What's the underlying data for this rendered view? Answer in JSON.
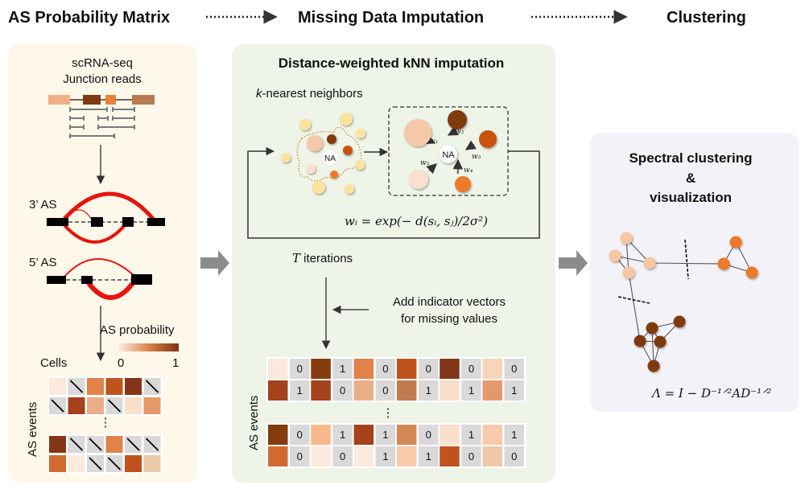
{
  "stages": {
    "stage1": "AS Probability Matrix",
    "stage2": "Missing Data Imputation",
    "stage3": "Clustering"
  },
  "left": {
    "line1": "scRNA-seq",
    "line2": "Junction reads",
    "as3": "3’ AS",
    "as5": "5’ AS",
    "prob_label": "AS probability",
    "scale_min": "0",
    "scale_max": "1",
    "cells_label": "Cells",
    "events_label": "AS events",
    "ellipsis": "⋮",
    "exon_colors": [
      "#f2ae84",
      "#7d3a10",
      "#e8823a",
      "#b87a4f"
    ],
    "matrix_top": [
      [
        "#fbe9dd",
        null,
        "#e0824a",
        "#c0521e",
        "#843518",
        null
      ],
      [
        null,
        "#a4421c",
        "#eaaf86",
        null,
        "#fae0c8",
        "#e5996a"
      ]
    ],
    "matrix_bottom": [
      [
        "#843518",
        null,
        null,
        "#e0824a",
        null,
        null
      ],
      [
        "#d06a30",
        "#fbeadd",
        null,
        null,
        "#c0521e",
        "#edc8a6"
      ]
    ]
  },
  "middle": {
    "title": "Distance-weighted kNN imputation",
    "knn_k": "k",
    "knn_rest": "-nearest neighbors",
    "na": "NA",
    "weights": [
      "w₁",
      "w₂",
      "w₃",
      "w₄",
      "w₅"
    ],
    "formula": "wᵢ = exp(− d(sᵢ, sⱼ)/2σ²)",
    "iter_T": "T",
    "iter_rest": " iterations",
    "add1": "Add indicator vectors",
    "add2": "for missing values",
    "events_label": "AS events",
    "ellipsis": "⋮",
    "matrix_top": [
      [
        [
          "#fbe9dd",
          "0"
        ],
        [
          "#843c0c",
          "1"
        ],
        [
          "#e0824a",
          "0"
        ],
        [
          "#c0521e",
          "0"
        ],
        [
          "#843518",
          "0"
        ],
        [
          "#f6d5bb",
          "0"
        ]
      ],
      [
        [
          "#a4421c",
          "1"
        ],
        [
          "#a4421c",
          "0"
        ],
        [
          "#eaaf86",
          "0"
        ],
        [
          "#c07a4e",
          "1"
        ],
        [
          "#fae0c8",
          "1"
        ],
        [
          "#e5996a",
          "1"
        ]
      ]
    ],
    "matrix_bottom": [
      [
        [
          "#843c0c",
          "0"
        ],
        [
          "#f7b98c",
          "1"
        ],
        [
          "#a4421c",
          "1"
        ],
        [
          "#d48855",
          "0"
        ],
        [
          "#fae0cc",
          "1"
        ],
        [
          "#f8c9aa",
          "1"
        ]
      ],
      [
        [
          "#d06a30",
          "0"
        ],
        [
          "#fbeadd",
          "0"
        ],
        [
          "#fbeadd",
          "1"
        ],
        [
          "#f8c9aa",
          "1"
        ],
        [
          "#c0521e",
          "0"
        ],
        [
          "#edc8a6",
          "0"
        ]
      ]
    ]
  },
  "right": {
    "title1": "Spectral clustering",
    "title2": "&",
    "title3": "visualization",
    "formula": "Λ = I − D⁻¹ᐟ²AD⁻¹ᐟ²",
    "cluster_colors": [
      "#f7c6a3",
      "#ec7a2c",
      "#7f3a0c"
    ]
  },
  "colors": {
    "panel_left": "#fdf8ea",
    "panel_middle": "#eef4e8",
    "panel_right": "#f3f2f8",
    "red_arc": "#e8130e",
    "na_cell": "#d9d9d9"
  }
}
